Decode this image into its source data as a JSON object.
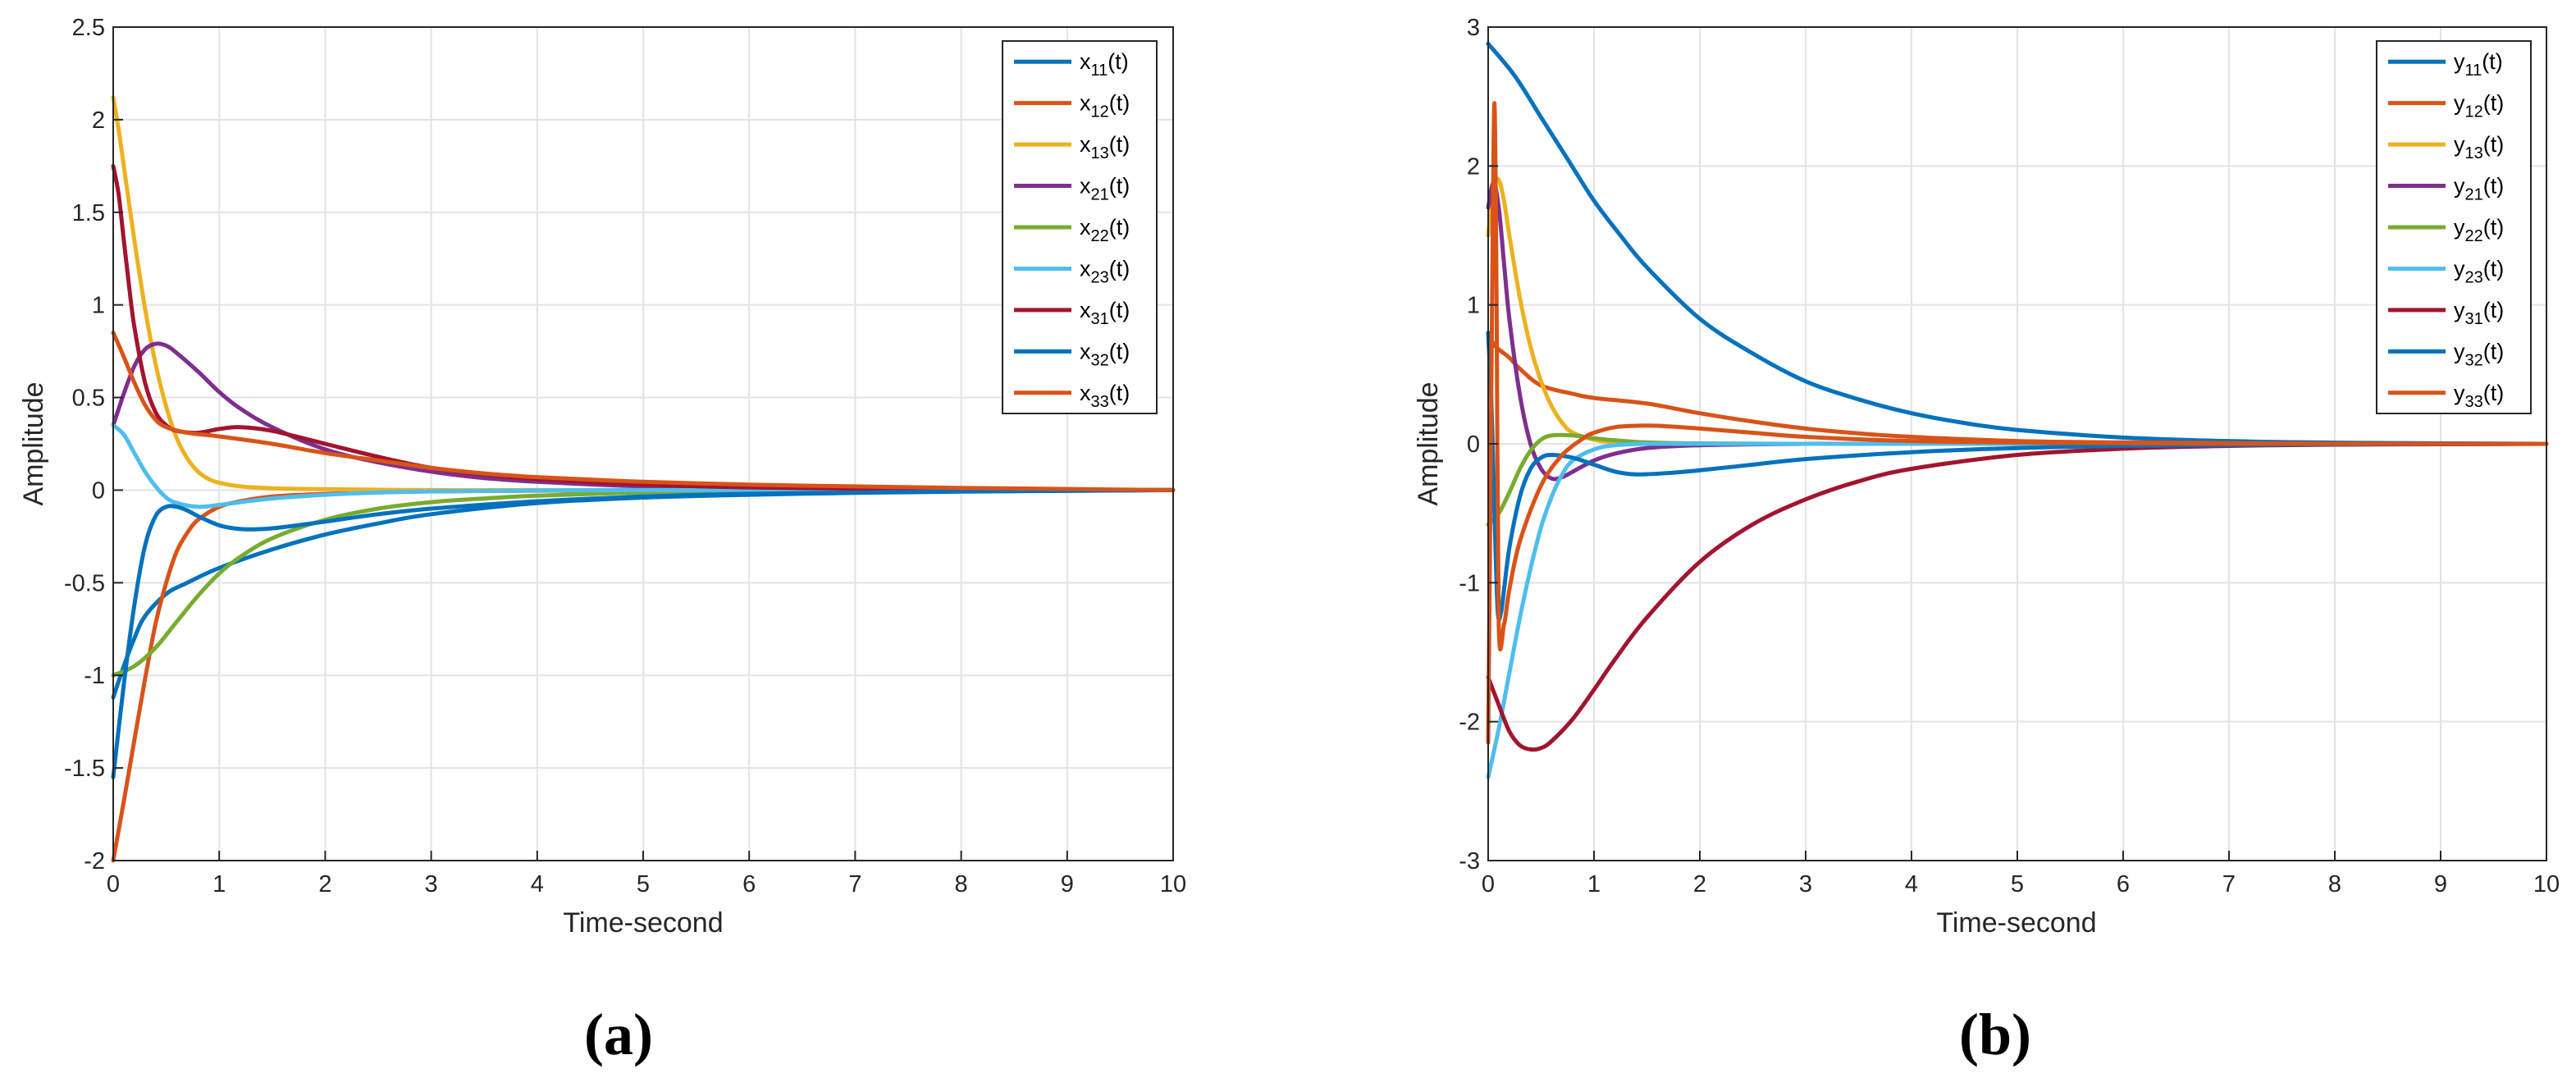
{
  "colors": [
    "#0072BD",
    "#D95319",
    "#EDB120",
    "#7E2F8E",
    "#77AC30",
    "#4DBEEE",
    "#A2142F",
    "#0072BD",
    "#D95319"
  ],
  "chart_data": [
    {
      "type": "line",
      "panel": "(a)",
      "xlabel": "Time-second",
      "ylabel": "Amplitude",
      "xlim": [
        0,
        10
      ],
      "ylim": [
        -2,
        2.5
      ],
      "xticks": [
        0,
        1,
        2,
        3,
        4,
        5,
        6,
        7,
        8,
        9,
        10
      ],
      "xtick_labels": [
        "0",
        "1",
        "2",
        "3",
        "4",
        "5",
        "6",
        "7",
        "8",
        "9",
        "10"
      ],
      "yticks": [
        -2,
        -1.5,
        -1,
        -0.5,
        0,
        0.5,
        1,
        1.5,
        2,
        2.5
      ],
      "ytick_labels": [
        "-2",
        "-1.5",
        "-1",
        "-0.5",
        "0",
        "0.5",
        "1",
        "1.5",
        "2",
        "2.5"
      ],
      "grid": true,
      "legend_position": "top-right",
      "series": [
        {
          "name": "x11(t)",
          "base": "x",
          "sub": "11",
          "t": [
            0,
            0.1,
            0.2,
            0.3,
            0.5,
            0.7,
            1,
            1.5,
            2,
            2.5,
            3,
            4,
            5,
            6,
            7,
            8,
            10
          ],
          "y": [
            -1.12,
            -0.95,
            -0.8,
            -0.68,
            -0.56,
            -0.5,
            -0.42,
            -0.32,
            -0.24,
            -0.18,
            -0.13,
            -0.07,
            -0.04,
            -0.025,
            -0.015,
            -0.008,
            0
          ]
        },
        {
          "name": "x12(t)",
          "base": "x",
          "sub": "12",
          "t": [
            0,
            0.1,
            0.2,
            0.3,
            0.4,
            0.5,
            0.6,
            0.7,
            0.8,
            1,
            1.2,
            1.5,
            2,
            2.5,
            3,
            4,
            5,
            6,
            8,
            10
          ],
          "y": [
            -2,
            -1.68,
            -1.35,
            -1.02,
            -0.72,
            -0.5,
            -0.33,
            -0.23,
            -0.16,
            -0.09,
            -0.06,
            -0.035,
            -0.02,
            -0.012,
            -0.007,
            -0.003,
            -0.001,
            0,
            0,
            0
          ]
        },
        {
          "name": "x13(t)",
          "base": "x",
          "sub": "13",
          "t": [
            0,
            0.05,
            0.1,
            0.2,
            0.3,
            0.4,
            0.5,
            0.6,
            0.7,
            0.8,
            0.9,
            1,
            1.2,
            1.5,
            2,
            3,
            4,
            6,
            10
          ],
          "y": [
            2.12,
            1.95,
            1.75,
            1.35,
            0.98,
            0.68,
            0.45,
            0.28,
            0.17,
            0.1,
            0.06,
            0.04,
            0.02,
            0.01,
            0.005,
            0,
            0,
            0,
            0
          ]
        },
        {
          "name": "x21(t)",
          "base": "x",
          "sub": "21",
          "t": [
            0,
            0.1,
            0.2,
            0.3,
            0.4,
            0.5,
            0.6,
            0.8,
            1,
            1.2,
            1.5,
            2,
            2.5,
            3,
            3.5,
            4,
            5,
            6,
            7,
            8,
            10
          ],
          "y": [
            0.35,
            0.52,
            0.67,
            0.76,
            0.79,
            0.78,
            0.74,
            0.64,
            0.53,
            0.44,
            0.34,
            0.22,
            0.15,
            0.1,
            0.065,
            0.045,
            0.02,
            0.01,
            0.005,
            0.002,
            0
          ]
        },
        {
          "name": "x22(t)",
          "base": "x",
          "sub": "22",
          "t": [
            0,
            0.2,
            0.4,
            0.6,
            0.8,
            1,
            1.2,
            1.5,
            2,
            2.5,
            3,
            3.5,
            4,
            5,
            6,
            7,
            8,
            10
          ],
          "y": [
            -1,
            -0.95,
            -0.85,
            -0.71,
            -0.57,
            -0.45,
            -0.36,
            -0.26,
            -0.16,
            -0.1,
            -0.065,
            -0.045,
            -0.03,
            -0.013,
            -0.006,
            -0.003,
            0,
            0
          ]
        },
        {
          "name": "x23(t)",
          "base": "x",
          "sub": "23",
          "t": [
            0,
            0.1,
            0.2,
            0.3,
            0.4,
            0.5,
            0.6,
            0.8,
            1,
            1.2,
            1.5,
            2,
            2.5,
            3,
            4,
            5,
            6,
            8,
            10
          ],
          "y": [
            0.35,
            0.3,
            0.2,
            0.1,
            0.02,
            -0.04,
            -0.07,
            -0.09,
            -0.08,
            -0.065,
            -0.045,
            -0.025,
            -0.013,
            -0.007,
            -0.002,
            0,
            0,
            0,
            0
          ]
        },
        {
          "name": "x31(t)",
          "base": "x",
          "sub": "31",
          "t": [
            0,
            0.05,
            0.1,
            0.15,
            0.2,
            0.3,
            0.4,
            0.5,
            0.6,
            0.8,
            1,
            1.2,
            1.5,
            2,
            2.5,
            3,
            3.5,
            4,
            5,
            6,
            7,
            8,
            10
          ],
          "y": [
            1.75,
            1.6,
            1.35,
            1.1,
            0.88,
            0.58,
            0.42,
            0.35,
            0.32,
            0.31,
            0.33,
            0.34,
            0.32,
            0.25,
            0.18,
            0.12,
            0.085,
            0.06,
            0.03,
            0.015,
            0.008,
            0.003,
            0
          ]
        },
        {
          "name": "x32(t)",
          "base": "x",
          "sub": "32",
          "t": [
            0,
            0.1,
            0.2,
            0.3,
            0.4,
            0.5,
            0.6,
            0.7,
            0.8,
            1,
            1.2,
            1.4,
            1.6,
            2,
            2.5,
            3,
            4,
            5,
            6,
            8,
            10
          ],
          "y": [
            -1.55,
            -1.05,
            -0.62,
            -0.3,
            -0.14,
            -0.09,
            -0.09,
            -0.11,
            -0.14,
            -0.19,
            -0.21,
            -0.21,
            -0.2,
            -0.17,
            -0.13,
            -0.1,
            -0.06,
            -0.035,
            -0.02,
            -0.007,
            0
          ]
        },
        {
          "name": "x33(t)",
          "base": "x",
          "sub": "33",
          "t": [
            0,
            0.1,
            0.2,
            0.3,
            0.4,
            0.5,
            0.7,
            1,
            1.5,
            2,
            2.5,
            3,
            3.5,
            4,
            5,
            6,
            7,
            8,
            10
          ],
          "y": [
            0.85,
            0.72,
            0.58,
            0.46,
            0.38,
            0.34,
            0.31,
            0.29,
            0.25,
            0.2,
            0.16,
            0.12,
            0.09,
            0.07,
            0.045,
            0.03,
            0.02,
            0.012,
            0
          ]
        }
      ]
    },
    {
      "type": "line",
      "panel": "(b)",
      "xlabel": "Time-second",
      "ylabel": "Amplitude",
      "xlim": [
        0,
        10
      ],
      "ylim": [
        -3,
        3
      ],
      "xticks": [
        0,
        1,
        2,
        3,
        4,
        5,
        6,
        7,
        8,
        9,
        10
      ],
      "xtick_labels": [
        "0",
        "1",
        "2",
        "3",
        "4",
        "5",
        "6",
        "7",
        "8",
        "9",
        "10"
      ],
      "yticks": [
        -3,
        -2,
        -1,
        0,
        1,
        2,
        3
      ],
      "ytick_labels": [
        "-3",
        "-2",
        "-1",
        "0",
        "1",
        "2",
        "3"
      ],
      "grid": true,
      "legend_position": "top-right",
      "series": [
        {
          "name": "y11(t)",
          "base": "y",
          "sub": "11",
          "t": [
            0,
            0.25,
            0.5,
            0.75,
            1,
            1.25,
            1.5,
            2,
            2.5,
            3,
            3.5,
            4,
            4.5,
            5,
            6,
            7,
            8,
            10
          ],
          "y": [
            2.88,
            2.65,
            2.35,
            2.05,
            1.75,
            1.5,
            1.27,
            0.9,
            0.65,
            0.45,
            0.32,
            0.22,
            0.15,
            0.1,
            0.045,
            0.02,
            0.008,
            0
          ]
        },
        {
          "name": "y12(t)",
          "base": "y",
          "sub": "12",
          "t": [
            0,
            0.05,
            0.1,
            0.2,
            0.3,
            0.5,
            0.8,
            1,
            1.5,
            2,
            2.5,
            3,
            3.5,
            4,
            5,
            6,
            8,
            10
          ],
          "y": [
            0.8,
            0.72,
            0.68,
            0.62,
            0.54,
            0.42,
            0.36,
            0.33,
            0.29,
            0.22,
            0.16,
            0.11,
            0.075,
            0.05,
            0.02,
            0.01,
            0.002,
            0
          ]
        },
        {
          "name": "y13(t)",
          "base": "y",
          "sub": "13",
          "t": [
            0,
            0.05,
            0.1,
            0.15,
            0.2,
            0.3,
            0.4,
            0.5,
            0.6,
            0.7,
            0.8,
            1,
            1.2,
            1.5,
            2,
            3,
            10
          ],
          "y": [
            1.5,
            1.85,
            1.9,
            1.75,
            1.5,
            1.05,
            0.7,
            0.45,
            0.27,
            0.15,
            0.08,
            0.03,
            0.01,
            0.005,
            0,
            0,
            0
          ]
        },
        {
          "name": "y21(t)",
          "base": "y",
          "sub": "21",
          "t": [
            0,
            0.05,
            0.1,
            0.15,
            0.2,
            0.3,
            0.4,
            0.5,
            0.6,
            0.7,
            0.8,
            1,
            1.2,
            1.5,
            2,
            3,
            4,
            10
          ],
          "y": [
            1.7,
            1.88,
            1.7,
            1.3,
            0.9,
            0.35,
            0.0,
            -0.18,
            -0.25,
            -0.24,
            -0.2,
            -0.12,
            -0.07,
            -0.03,
            -0.01,
            0,
            0,
            0
          ]
        },
        {
          "name": "y22(t)",
          "base": "y",
          "sub": "22",
          "t": [
            0,
            0.1,
            0.2,
            0.3,
            0.4,
            0.5,
            0.6,
            0.8,
            1,
            1.2,
            1.5,
            2,
            3,
            4,
            10
          ],
          "y": [
            -0.58,
            -0.5,
            -0.35,
            -0.18,
            -0.05,
            0.03,
            0.06,
            0.06,
            0.04,
            0.025,
            0.01,
            0.003,
            0,
            0,
            0
          ]
        },
        {
          "name": "y23(t)",
          "base": "y",
          "sub": "23",
          "t": [
            0,
            0.1,
            0.2,
            0.3,
            0.4,
            0.5,
            0.6,
            0.7,
            0.8,
            1,
            1.2,
            1.5,
            2,
            3,
            10
          ],
          "y": [
            -2.4,
            -2.05,
            -1.65,
            -1.25,
            -0.9,
            -0.6,
            -0.38,
            -0.22,
            -0.12,
            -0.04,
            -0.01,
            0,
            0,
            0,
            0
          ]
        },
        {
          "name": "y31(t)",
          "base": "y",
          "sub": "31",
          "t": [
            0,
            0.1,
            0.2,
            0.3,
            0.4,
            0.5,
            0.6,
            0.8,
            1,
            1.2,
            1.5,
            2,
            2.5,
            3,
            3.5,
            4,
            5,
            6,
            7,
            8,
            10
          ],
          "y": [
            -1.68,
            -1.88,
            -2.07,
            -2.17,
            -2.2,
            -2.19,
            -2.14,
            -1.98,
            -1.77,
            -1.55,
            -1.25,
            -0.85,
            -0.58,
            -0.4,
            -0.27,
            -0.18,
            -0.08,
            -0.035,
            -0.015,
            -0.006,
            0
          ]
        },
        {
          "name": "y32(t)",
          "base": "y",
          "sub": "32",
          "t": [
            0,
            0.03,
            0.06,
            0.09,
            0.12,
            0.15,
            0.2,
            0.3,
            0.4,
            0.5,
            0.6,
            0.8,
            1,
            1.2,
            1.4,
            1.7,
            2,
            2.5,
            3,
            4,
            5,
            6,
            8,
            10
          ],
          "y": [
            0.8,
            0.3,
            -0.5,
            -1.2,
            -1.22,
            -1.05,
            -0.75,
            -0.38,
            -0.18,
            -0.1,
            -0.08,
            -0.1,
            -0.15,
            -0.2,
            -0.22,
            -0.21,
            -0.19,
            -0.15,
            -0.11,
            -0.06,
            -0.03,
            -0.015,
            -0.004,
            0
          ]
        },
        {
          "name": "y33(t)",
          "base": "y",
          "sub": "33",
          "t": [
            0,
            0.02,
            0.04,
            0.06,
            0.08,
            0.1,
            0.15,
            0.2,
            0.3,
            0.5,
            0.7,
            0.9,
            1,
            1.2,
            1.4,
            1.6,
            2,
            2.5,
            3,
            4,
            5,
            6,
            8,
            10
          ],
          "y": [
            -2.15,
            -0.5,
            1.3,
            2.45,
            1.0,
            -1.3,
            -1.3,
            -1.05,
            -0.7,
            -0.3,
            -0.08,
            0.04,
            0.08,
            0.12,
            0.13,
            0.13,
            0.11,
            0.08,
            0.05,
            0.02,
            0.01,
            0.004,
            0,
            0
          ]
        }
      ]
    }
  ]
}
